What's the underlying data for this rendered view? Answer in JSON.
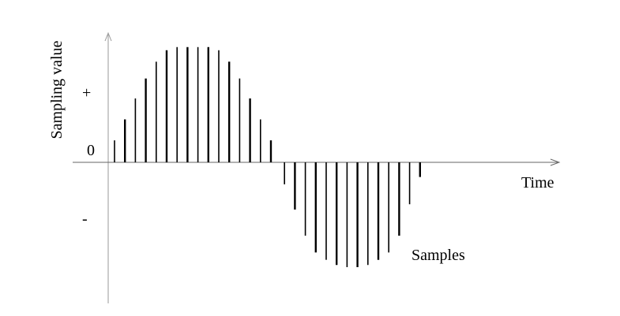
{
  "chart_data": {
    "type": "bar",
    "title": "",
    "xlabel": "Time",
    "ylabel": "Sampling value",
    "y_tick_labels": {
      "positive": "+",
      "zero": "0",
      "negative": "-"
    },
    "annotation": "Samples",
    "grid": false,
    "legend": "none",
    "values": [
      0.21,
      0.41,
      0.61,
      0.8,
      0.96,
      1.07,
      1.1,
      1.1,
      1.1,
      1.1,
      1.07,
      0.96,
      0.8,
      0.61,
      0.41,
      0.21,
      -0.21,
      -0.45,
      -0.7,
      -0.86,
      -0.93,
      -0.98,
      -1.0,
      -1.0,
      -0.98,
      -0.93,
      -0.86,
      -0.7,
      -0.4,
      -0.14
    ],
    "ylim": [
      -1.35,
      1.1
    ]
  }
}
